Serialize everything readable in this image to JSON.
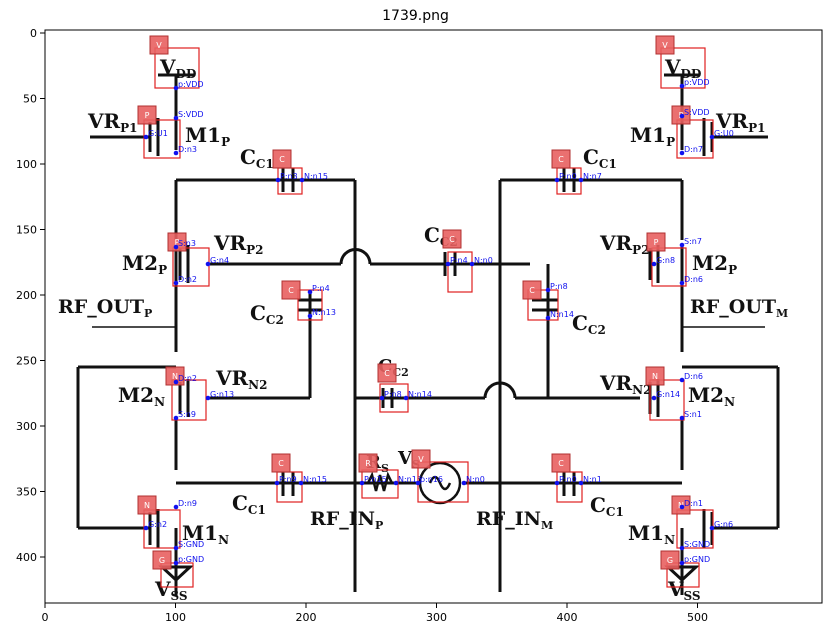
{
  "title": "1739.png",
  "axes": {
    "x_ticks": [
      "0",
      "100",
      "200",
      "300",
      "400",
      "500"
    ],
    "y_ticks": [
      "0",
      "50",
      "100",
      "150",
      "200",
      "250",
      "300",
      "350",
      "400"
    ]
  },
  "labels": [
    {
      "id": "vdd-left",
      "text": "V",
      "sub": "DD"
    },
    {
      "id": "vdd-right",
      "text": "V",
      "sub": "DD"
    },
    {
      "id": "vrp1-left",
      "text": "VR",
      "sub": "P1"
    },
    {
      "id": "vrp1-right",
      "text": "VR",
      "sub": "P1"
    },
    {
      "id": "m1p-left",
      "text": "M1",
      "sub": "P"
    },
    {
      "id": "m1p-right",
      "text": "M1",
      "sub": "P"
    },
    {
      "id": "cc1-top-left",
      "text": "C",
      "sub": "C1"
    },
    {
      "id": "cc1-top-right",
      "text": "C",
      "sub": "C1"
    },
    {
      "id": "vrp2-left",
      "text": "VR",
      "sub": "P2"
    },
    {
      "id": "vrp2-right",
      "text": "VR",
      "sub": "P2"
    },
    {
      "id": "m2p-left",
      "text": "M2",
      "sub": "P"
    },
    {
      "id": "m2p-right",
      "text": "M2",
      "sub": "P"
    },
    {
      "id": "cc2-mid-top",
      "text": "C",
      "sub": "C2"
    },
    {
      "id": "cc2-left",
      "text": "C",
      "sub": "C2"
    },
    {
      "id": "cc2-right",
      "text": "C",
      "sub": "C2"
    },
    {
      "id": "rfout-p",
      "text": "RF_OUT",
      "sub": "P"
    },
    {
      "id": "rfout-m",
      "text": "RF_OUT",
      "sub": "M"
    },
    {
      "id": "vrn2-left",
      "text": "VR",
      "sub": "N2"
    },
    {
      "id": "vrn2-right",
      "text": "VR",
      "sub": "N2"
    },
    {
      "id": "m2n-left",
      "text": "M2",
      "sub": "N"
    },
    {
      "id": "m2n-right",
      "text": "M2",
      "sub": "N"
    },
    {
      "id": "cc2-mid-bottom",
      "text": "C",
      "sub": "C2"
    },
    {
      "id": "rs",
      "text": "R",
      "sub": "S"
    },
    {
      "id": "vs",
      "text": "V",
      "sub": "S"
    },
    {
      "id": "cc1-bot-left",
      "text": "C",
      "sub": "C1"
    },
    {
      "id": "cc1-bot-right",
      "text": "C",
      "sub": "C1"
    },
    {
      "id": "rfin-p",
      "text": "RF_IN",
      "sub": "P"
    },
    {
      "id": "rfin-m",
      "text": "RF_IN",
      "sub": "M"
    },
    {
      "id": "m1n-left",
      "text": "M1",
      "sub": "N"
    },
    {
      "id": "m1n-right",
      "text": "M1",
      "sub": "N"
    },
    {
      "id": "vss-left",
      "text": "V",
      "sub": "SS"
    },
    {
      "id": "vss-right",
      "text": "V",
      "sub": "SS"
    }
  ],
  "components": [
    {
      "tag": "V",
      "pins": [
        "p:VDD"
      ]
    },
    {
      "tag": "V",
      "pins": [
        "p:VDD"
      ]
    },
    {
      "tag": "P",
      "pins": [
        "S:VDD",
        "G:U1",
        "D:n3"
      ]
    },
    {
      "tag": "P",
      "pins": [
        "S:VDD",
        "G:U0",
        "D:n7"
      ]
    },
    {
      "tag": "C",
      "pins": [
        "P:n3",
        "N:n15"
      ]
    },
    {
      "tag": "C",
      "pins": [
        "P:n0",
        "N:n7"
      ]
    },
    {
      "tag": "P",
      "pins": [
        "S:n3",
        "G:n4",
        "D:n2"
      ]
    },
    {
      "tag": "P",
      "pins": [
        "S:n7",
        "G:n8",
        "D:n6"
      ]
    },
    {
      "tag": "C",
      "pins": [
        "P:n4",
        "N:n0"
      ]
    },
    {
      "tag": "C",
      "pins": [
        "P:n4",
        "N:n13"
      ]
    },
    {
      "tag": "C",
      "pins": [
        "P:n8",
        "N:n14"
      ]
    },
    {
      "tag": "N",
      "pins": [
        "D:n2",
        "G:n13",
        "S:n9"
      ]
    },
    {
      "tag": "N",
      "pins": [
        "D:n6",
        "G:n14",
        "S:n1"
      ]
    },
    {
      "tag": "C",
      "pins": [
        "P:n8",
        "N:n14"
      ]
    },
    {
      "tag": "C",
      "pins": [
        "P:n9",
        "N:n15"
      ]
    },
    {
      "tag": "R",
      "pins": [
        "P:n15",
        "N:n16"
      ]
    },
    {
      "tag": "V",
      "pins": [
        "p:n16",
        "N:n0"
      ]
    },
    {
      "tag": "C",
      "pins": [
        "P:n0",
        "N:n1"
      ]
    },
    {
      "tag": "N",
      "pins": [
        "D:n9",
        "G:n2",
        "S:GND"
      ]
    },
    {
      "tag": "N",
      "pins": [
        "D:n1",
        "G:n6",
        "S:GND"
      ]
    },
    {
      "tag": "G",
      "pins": [
        "p:GND"
      ]
    },
    {
      "tag": "G",
      "pins": [
        "p:GND"
      ]
    }
  ],
  "colors": {
    "wire": "#111111",
    "box": "#e02020",
    "tag_fill": "#e86060",
    "annotation": "#1010ee"
  }
}
